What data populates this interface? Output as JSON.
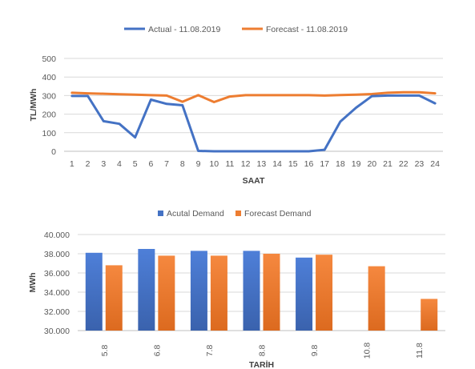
{
  "chart_data": [
    {
      "type": "line",
      "title": "",
      "xlabel": "SAAT",
      "ylabel": "TL/MWh",
      "x": [
        1,
        2,
        3,
        4,
        5,
        6,
        7,
        8,
        9,
        10,
        11,
        12,
        13,
        14,
        15,
        16,
        17,
        18,
        19,
        20,
        21,
        22,
        23,
        24
      ],
      "ylim": [
        0,
        500
      ],
      "yticks": [
        "0",
        "100",
        "200",
        "300",
        "400",
        "500"
      ],
      "grid": true,
      "legend": "top-center",
      "series": [
        {
          "name": "Actual - 11.08.2019",
          "color": "#4472C4",
          "values": [
            298,
            298,
            162,
            148,
            75,
            278,
            255,
            248,
            2,
            0,
            0,
            0,
            0,
            0,
            0,
            0,
            8,
            160,
            235,
            297,
            300,
            300,
            300,
            258
          ]
        },
        {
          "name": "Forecast - 11.08.2019",
          "color": "#ED7D31",
          "values": [
            315,
            312,
            310,
            307,
            305,
            302,
            300,
            267,
            302,
            265,
            295,
            302,
            302,
            302,
            302,
            302,
            300,
            303,
            305,
            308,
            315,
            318,
            318,
            312
          ]
        }
      ]
    },
    {
      "type": "bar",
      "title": "",
      "xlabel": "TARİH",
      "ylabel": "MWh",
      "categories": [
        "5.8",
        "6.8",
        "7.8",
        "8.8",
        "9.8",
        "10.8",
        "11.8"
      ],
      "ylim": [
        30000,
        40000
      ],
      "yticks": [
        "30.000",
        "32.000",
        "34.000",
        "36.000",
        "38.000",
        "40.000"
      ],
      "grid": true,
      "legend": "top-center",
      "series": [
        {
          "name": "Acutal Demand",
          "color": "#4472C4",
          "values": [
            38100,
            38500,
            38300,
            38300,
            37600,
            null,
            null
          ]
        },
        {
          "name": "Forecast Demand",
          "color": "#ED7D31",
          "values": [
            36800,
            37800,
            37800,
            38000,
            37900,
            36700,
            33300
          ]
        }
      ]
    }
  ]
}
